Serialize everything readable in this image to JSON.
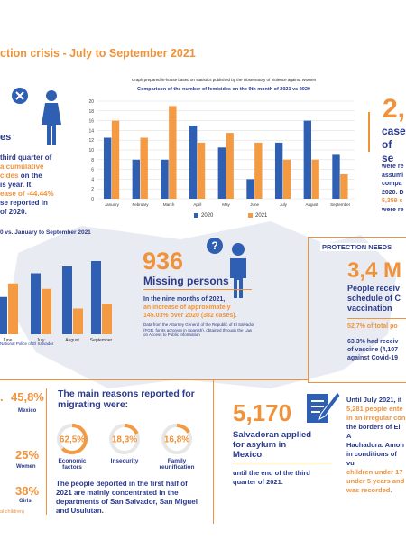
{
  "header": {
    "title": "ction crisis - July to September 2021"
  },
  "left_top": {
    "line1": "es",
    "line2": "third quarter of",
    "line3": "a cumulative",
    "line4": "cides on the",
    "line5": "is year. It",
    "line6": "ease of -44.44%",
    "line7": "se reported in",
    "line8": "of 2020."
  },
  "chart1": {
    "note": "Graph prepared in-house based on statistics published by the Observatory of Violence against Women",
    "title": "Comparison of the number of femicides on the 9th month of 2021 vs 2020"
  },
  "chart_data": [
    {
      "type": "bar",
      "title": "Comparison of the number of femicides on the 9th month of 2021 vs 2020",
      "categories": [
        "January",
        "February",
        "March",
        "April",
        "May",
        "June",
        "July",
        "August",
        "September"
      ],
      "series": [
        {
          "name": "2020",
          "values": [
            12.5,
            8,
            8,
            15,
            10.5,
            4,
            11.5,
            16,
            9
          ]
        },
        {
          "name": "2021",
          "values": [
            16,
            12.5,
            19,
            11.5,
            13.5,
            11.5,
            8,
            8,
            5
          ]
        }
      ],
      "ylim": [
        0,
        20
      ],
      "yticks": [
        0,
        2,
        4,
        6,
        8,
        10,
        12,
        14,
        16,
        18,
        20
      ],
      "grid": true,
      "legend": "bottom",
      "colors": {
        "2020": "#2f5fb3",
        "2021": "#f39a43"
      }
    },
    {
      "type": "bar",
      "title": "0 vs. January to September 2021",
      "categories": [
        "June",
        "July",
        "August",
        "September"
      ],
      "series": [
        {
          "name": "2020",
          "values": [
            0.55,
            0.9,
            1.0,
            1.08
          ]
        },
        {
          "name": "2021",
          "values": [
            0.75,
            0.67,
            0.38,
            0.45
          ]
        }
      ],
      "colors": {
        "2020": "#2f5fb3",
        "2021": "#f39a43"
      }
    }
  ],
  "chart2": {
    "title": "0 vs. January to September 2021",
    "source": "National Police of El Salvador"
  },
  "right_top": {
    "big": "2,",
    "line1": "case",
    "line2": "of se",
    "p1": "were re",
    "p2": "assumi",
    "p3": "compa",
    "p4": "2020. D",
    "p5": "5,359 c",
    "p6": "were re"
  },
  "missing": {
    "number": "936",
    "label": "Missing persons",
    "text1": "In the nine months of 2021,",
    "text2": "an increase of approximately",
    "text3": "145.03% over 2020 (382 cases).",
    "note": "Data from the Attorney General of the Republic of El Salvador (FGR, for its acronym in Spanish), obtained through the Law on Access to Public Information"
  },
  "protection": {
    "heading": "PROTECTION NEEDS",
    "big": "3,4 M",
    "line1": "People receiv",
    "line2": "schedule of C",
    "line3": "vaccination",
    "pct": "52.7% of total po",
    "t1": "63.3% had receiv",
    "t2": "of vaccine (4,107",
    "t3": "against Covid-19"
  },
  "migration": {
    "stat1": "45,8%",
    "stat1_label": "Mexico",
    "stat2": "25%",
    "stat2_label": "Women",
    "stat3": "38%",
    "stat3_label": "Girls",
    "footnote": "al children)",
    "heading1": "The main reasons reported for",
    "heading2": "migrating were:",
    "reasons": [
      {
        "value": "62,5%",
        "label1": "Economic",
        "label2": "factors",
        "fraction": 0.625
      },
      {
        "value": "18,3%",
        "label1": "Insecurity",
        "label2": "",
        "fraction": 0.183
      },
      {
        "value": "16,8%",
        "label1": "Family",
        "label2": "reunification",
        "fraction": 0.168
      }
    ],
    "body1": "The people deported in the first half of",
    "body2": "2021 are mainly concentrated in the",
    "body3": "departments of San Salvador, San Miguel",
    "body4": "and Usulutan."
  },
  "asylum": {
    "number": "5,170",
    "line1": "Salvadoran applied",
    "line2": "for asylum in",
    "line3": "Mexico",
    "line4": "until the end of the third",
    "line5": "quarter of 2021."
  },
  "right_bottom": {
    "l1": "Until July 2021, it",
    "l2": "5,281 people ente",
    "l3": "in an irregular con",
    "l4": "the borders of El A",
    "l5": "Hachadura. Amon",
    "l6": "in conditions of vu",
    "l7": "children under 17",
    "l8": "under 5 years and",
    "l9": "was recorded."
  }
}
